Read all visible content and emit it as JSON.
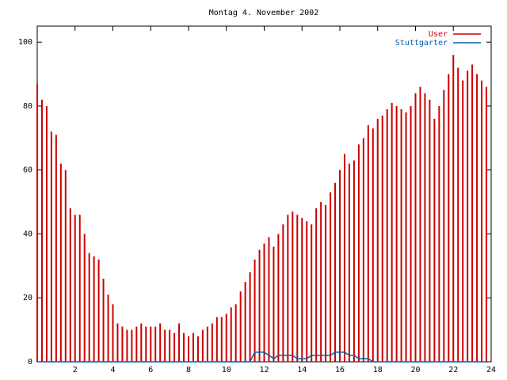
{
  "chart_data": {
    "type": "impulses",
    "title": "Montag 4. November 2002",
    "x": [
      0,
      0.25,
      0.5,
      0.75,
      1,
      1.25,
      1.5,
      1.75,
      2,
      2.25,
      2.5,
      2.75,
      3,
      3.25,
      3.5,
      3.75,
      4,
      4.25,
      4.5,
      4.75,
      5,
      5.25,
      5.5,
      5.75,
      6,
      6.25,
      6.5,
      6.75,
      7,
      7.25,
      7.5,
      7.75,
      8,
      8.25,
      8.5,
      8.75,
      9,
      9.25,
      9.5,
      9.75,
      10,
      10.25,
      10.5,
      10.75,
      11,
      11.25,
      11.5,
      11.75,
      12,
      12.25,
      12.5,
      12.75,
      13,
      13.25,
      13.5,
      13.75,
      14,
      14.25,
      14.5,
      14.75,
      15,
      15.25,
      15.5,
      15.75,
      16,
      16.25,
      16.5,
      16.75,
      17,
      17.25,
      17.5,
      17.75,
      18,
      18.25,
      18.5,
      18.75,
      19,
      19.25,
      19.5,
      19.75,
      20,
      20.25,
      20.5,
      20.75,
      21,
      21.25,
      21.5,
      21.75,
      22,
      22.25,
      22.5,
      22.75,
      23,
      23.25,
      23.5,
      23.75
    ],
    "series": [
      {
        "name": "User",
        "color": "#cc0000",
        "style": "impulses",
        "values": [
          87,
          82,
          80,
          72,
          71,
          62,
          60,
          48,
          46,
          46,
          40,
          34,
          33,
          32,
          26,
          21,
          18,
          12,
          11,
          10,
          10,
          11,
          12,
          11,
          11,
          11,
          12,
          10,
          10,
          9,
          12,
          9,
          8,
          9,
          8,
          10,
          11,
          12,
          14,
          14,
          15,
          17,
          18,
          22,
          25,
          28,
          32,
          35,
          37,
          39,
          36,
          40,
          43,
          46,
          47,
          46,
          45,
          44,
          43,
          48,
          50,
          49,
          53,
          56,
          60,
          65,
          62,
          63,
          68,
          70,
          74,
          73,
          76,
          77,
          79,
          81,
          80,
          79,
          78,
          80,
          84,
          86,
          84,
          82,
          76,
          80,
          85,
          90,
          96,
          92,
          88,
          91,
          93,
          90,
          88,
          86
        ]
      },
      {
        "name": "Stuttgarter",
        "color": "#0060b0",
        "style": "line",
        "values": [
          0,
          0,
          0,
          0,
          0,
          0,
          0,
          0,
          0,
          0,
          0,
          0,
          0,
          0,
          0,
          0,
          0,
          0,
          0,
          0,
          0,
          0,
          0,
          0,
          0,
          0,
          0,
          0,
          0,
          0,
          0,
          0,
          0,
          0,
          0,
          0,
          0,
          0,
          0,
          0,
          0,
          0,
          0,
          0,
          0,
          0,
          3,
          3,
          3,
          2,
          1,
          2,
          2,
          2,
          2,
          1,
          1,
          1,
          2,
          2,
          2,
          2,
          2,
          3,
          3,
          3,
          2,
          2,
          1,
          1,
          1,
          0,
          0,
          0,
          0,
          0,
          0,
          0,
          0,
          0,
          0,
          0,
          0,
          0,
          0,
          0,
          0,
          0,
          0,
          0,
          0,
          0,
          0,
          0,
          0,
          0
        ]
      }
    ],
    "xlim": [
      0,
      24
    ],
    "ylim": [
      0,
      105
    ],
    "xticks": [
      2,
      4,
      6,
      8,
      10,
      12,
      14,
      16,
      18,
      20,
      22,
      24
    ],
    "yticks": [
      0,
      20,
      40,
      60,
      80,
      100
    ],
    "legend": "top-right"
  }
}
